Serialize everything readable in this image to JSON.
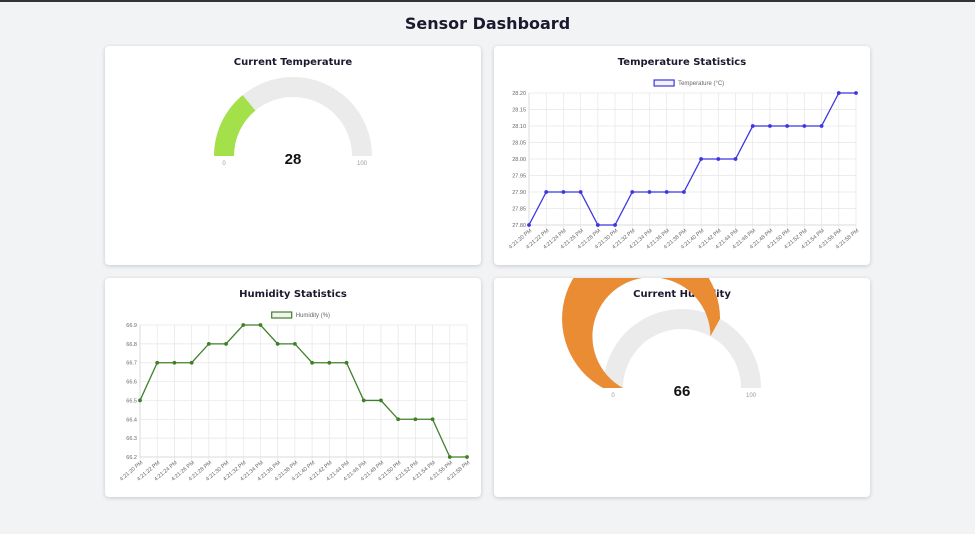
{
  "page": {
    "title": "Sensor Dashboard"
  },
  "temperature_gauge": {
    "title": "Current Temperature",
    "value": 28,
    "min": 0,
    "max": 100,
    "min_label": "0",
    "max_label": "100",
    "value_label": "28",
    "fill_color": "#a4e04a",
    "track_color": "#ebebeb"
  },
  "humidity_gauge": {
    "title": "Current Humidity",
    "value": 66,
    "min": 0,
    "max": 100,
    "min_label": "0",
    "max_label": "100",
    "value_label": "66",
    "fill_color": "#e98c34",
    "track_color": "#ebebeb"
  },
  "temperature_chart": {
    "title": "Temperature Statistics"
  },
  "humidity_chart": {
    "title": "Humidity Statistics"
  },
  "chart_data": [
    {
      "type": "line",
      "title": "Temperature Statistics",
      "x": [
        "4:21:20 PM",
        "4:21:22 PM",
        "4:21:24 PM",
        "4:21:26 PM",
        "4:21:28 PM",
        "4:21:30 PM",
        "4:21:32 PM",
        "4:21:34 PM",
        "4:21:36 PM",
        "4:21:38 PM",
        "4:21:40 PM",
        "4:21:42 PM",
        "4:21:44 PM",
        "4:21:46 PM",
        "4:21:48 PM",
        "4:21:50 PM",
        "4:21:52 PM",
        "4:21:54 PM",
        "4:21:56 PM",
        "4:21:58 PM"
      ],
      "series": [
        {
          "name": "Temperature (°C)",
          "color": "#3d35e0",
          "values": [
            27.8,
            27.9,
            27.9,
            27.9,
            27.8,
            27.8,
            27.9,
            27.9,
            27.9,
            27.9,
            28.0,
            28.0,
            28.0,
            28.1,
            28.1,
            28.1,
            28.1,
            28.1,
            28.2,
            28.2
          ]
        }
      ],
      "yticks": [
        "27.80",
        "27.85",
        "27.90",
        "27.95",
        "28.00",
        "28.05",
        "28.10",
        "28.15",
        "28.20"
      ],
      "ylim": [
        27.8,
        28.2
      ],
      "grid": true,
      "legend": "top-center"
    },
    {
      "type": "line",
      "title": "Humidity Statistics",
      "x": [
        "4:21:20 PM",
        "4:21:22 PM",
        "4:21:24 PM",
        "4:21:26 PM",
        "4:21:28 PM",
        "4:21:30 PM",
        "4:21:32 PM",
        "4:21:34 PM",
        "4:21:36 PM",
        "4:21:38 PM",
        "4:21:40 PM",
        "4:21:42 PM",
        "4:21:44 PM",
        "4:21:46 PM",
        "4:21:48 PM",
        "4:21:50 PM",
        "4:21:52 PM",
        "4:21:54 PM",
        "4:21:56 PM",
        "4:21:58 PM"
      ],
      "series": [
        {
          "name": "Humidity (%)",
          "color": "#3f7f2a",
          "values": [
            66.5,
            66.7,
            66.7,
            66.7,
            66.8,
            66.8,
            66.9,
            66.9,
            66.8,
            66.8,
            66.7,
            66.7,
            66.7,
            66.5,
            66.5,
            66.4,
            66.4,
            66.4,
            66.2,
            66.2
          ]
        }
      ],
      "yticks": [
        "66.2",
        "66.3",
        "66.4",
        "66.5",
        "66.6",
        "66.7",
        "66.8",
        "66.9"
      ],
      "ylim": [
        66.2,
        66.9
      ],
      "grid": true,
      "legend": "top-center"
    }
  ]
}
